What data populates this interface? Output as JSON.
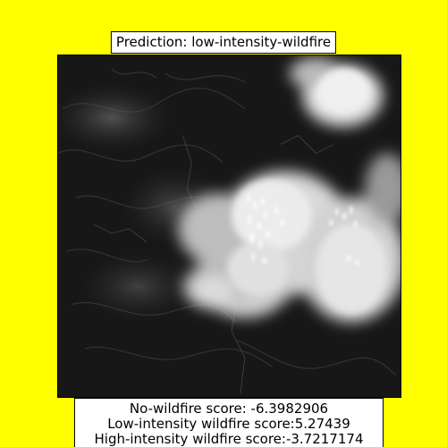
{
  "figure": {
    "background_color": "#ffff00",
    "title": "Prediction: low-intensity-wildfire",
    "image_description_icon": "satellite-image-icon",
    "scores": {
      "no_wildfire": "No-wildfire score: -6.3982906",
      "low_intensity": "Low-intensity wildfire score:5.27439",
      "high_intensity": "High-intensity wildfire score:-3.7217174"
    }
  }
}
